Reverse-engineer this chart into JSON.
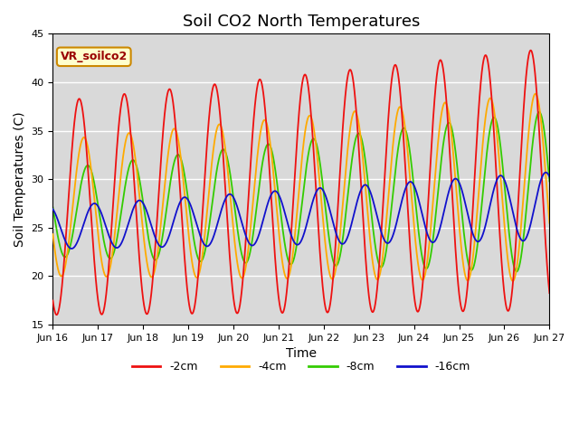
{
  "title": "Soil CO2 North Temperatures",
  "xlabel": "Time",
  "ylabel": "Soil Temperatures (C)",
  "ylim": [
    15,
    45
  ],
  "background_color": "#d9d9d9",
  "legend_label": "VR_soilco2",
  "series_labels": [
    "-2cm",
    "-4cm",
    "-8cm",
    "-16cm"
  ],
  "series_colors": [
    "#ee1111",
    "#ffaa00",
    "#33cc00",
    "#1111cc"
  ],
  "xtick_labels": [
    "Jun 16",
    "Jun 17",
    "Jun 18",
    "Jun 19",
    "Jun 20",
    "Jun 21",
    "Jun 22",
    "Jun 23",
    "Jun 24",
    "Jun 25",
    "Jun 26",
    "Jun 27"
  ],
  "ytick_labels": [
    "15",
    "20",
    "25",
    "30",
    "35",
    "40",
    "45"
  ],
  "title_fontsize": 13,
  "axis_label_fontsize": 10
}
